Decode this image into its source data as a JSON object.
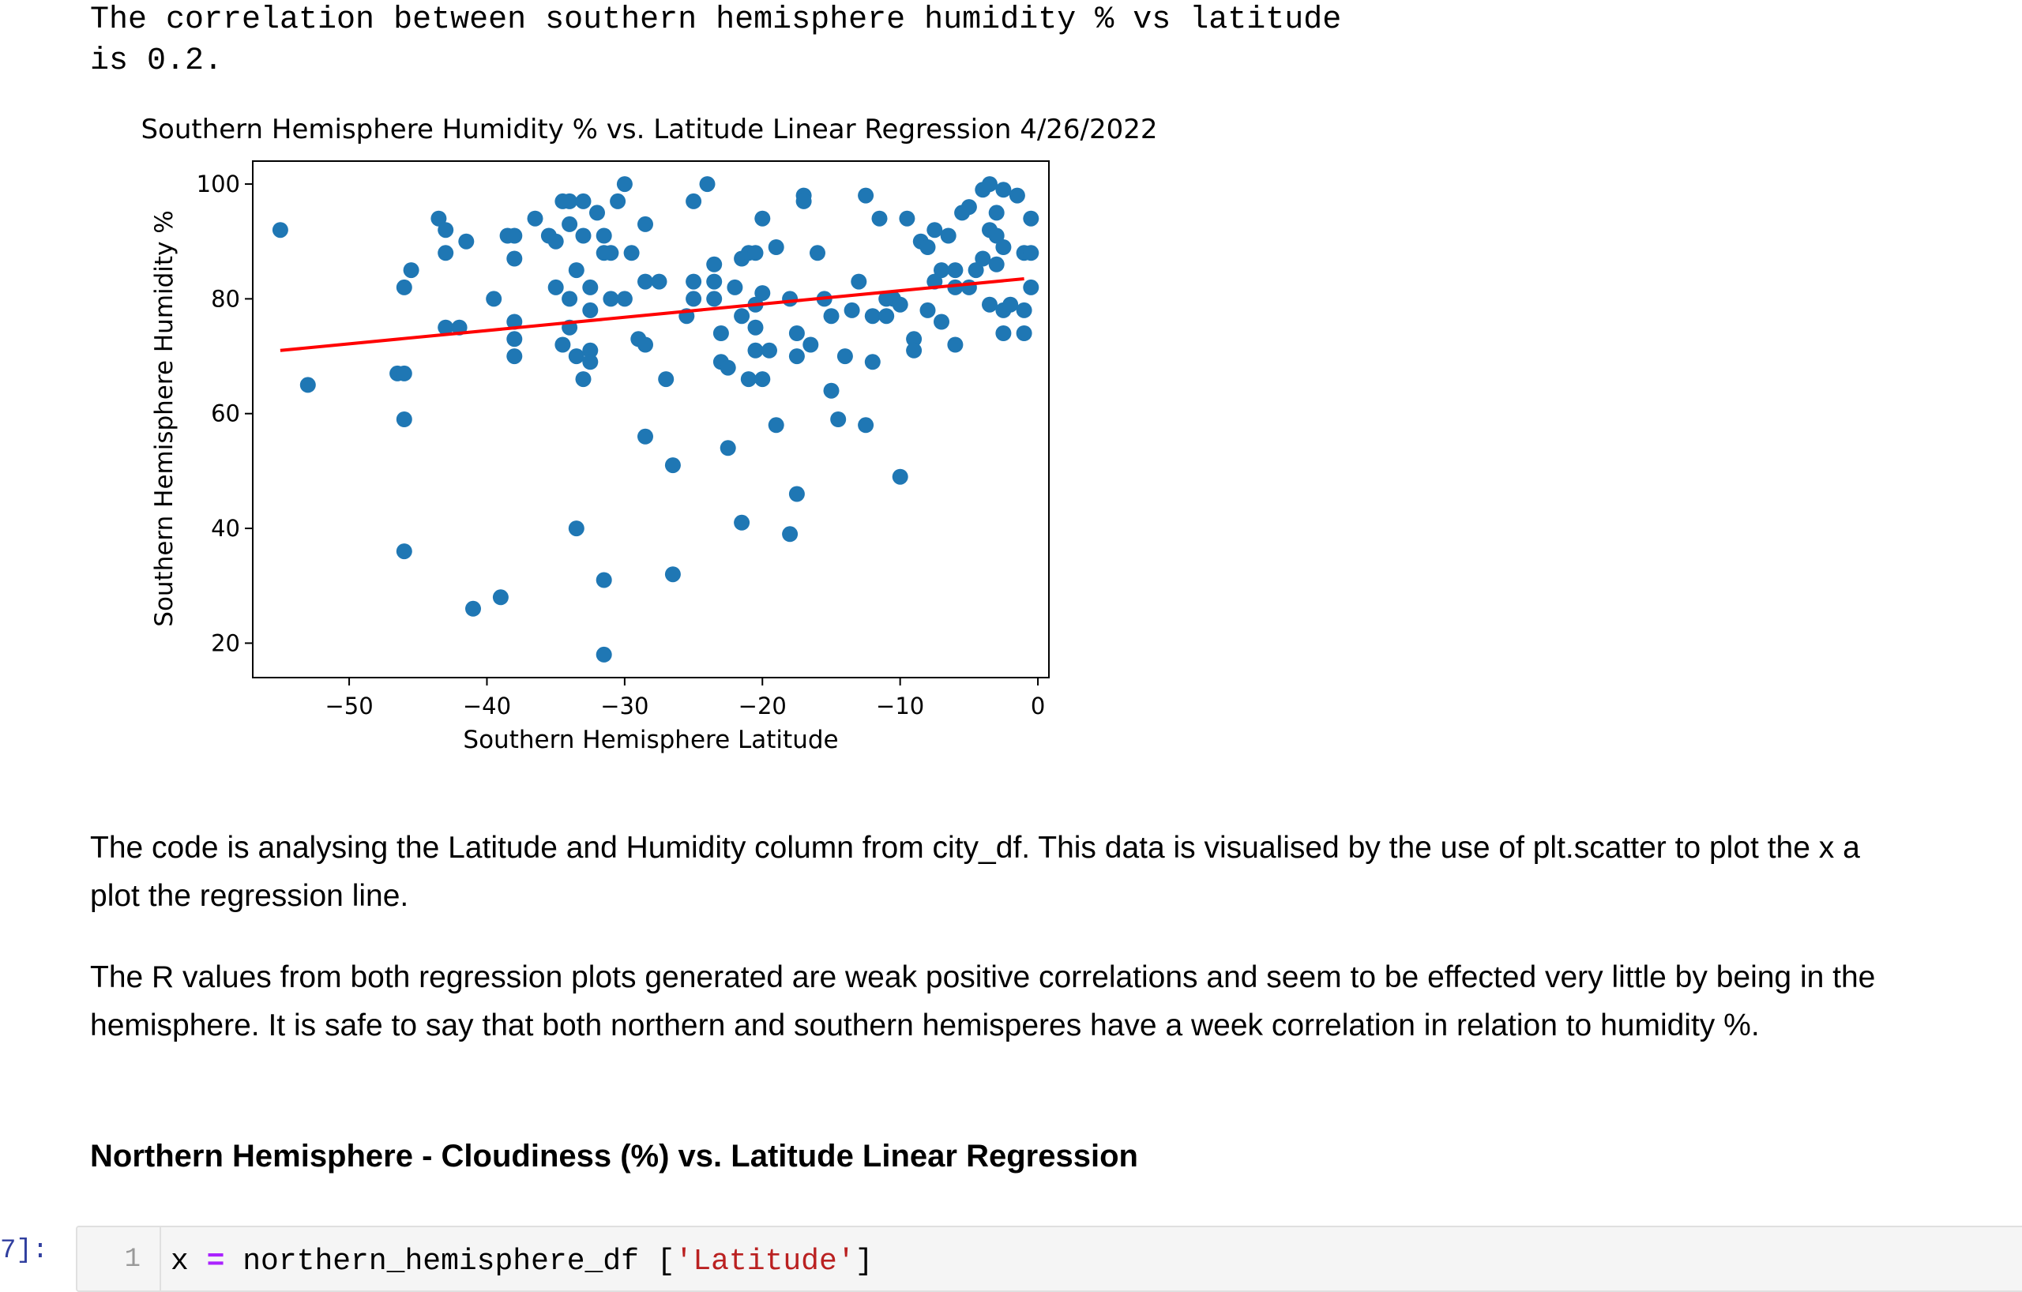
{
  "output": {
    "correlation_text": "The correlation between southern hemisphere humidity % vs latitude\nis 0.2."
  },
  "chart_data": {
    "type": "scatter",
    "title": "Southern Hemisphere Humidity % vs. Latitude Linear Regression 4/26/2022",
    "xlabel": "Southern Hemisphere Latitude",
    "ylabel": "Southern Hemisphere Humidity %",
    "xlim": [
      -57,
      0.8
    ],
    "ylim": [
      14,
      104
    ],
    "xticks": [
      -50,
      -40,
      -30,
      -20,
      -10,
      0
    ],
    "yticks": [
      20,
      40,
      60,
      80,
      100
    ],
    "point_color": "#1f77b4",
    "line_color": "#ff0000",
    "grid": false,
    "regression_line": {
      "x": [
        -55,
        -1
      ],
      "y": [
        71,
        83.5
      ]
    },
    "points": [
      [
        -55,
        92
      ],
      [
        -53,
        65
      ],
      [
        -46.5,
        67
      ],
      [
        -46,
        67
      ],
      [
        -46,
        82
      ],
      [
        -46,
        59
      ],
      [
        -46,
        36
      ],
      [
        -45.5,
        85
      ],
      [
        -43.5,
        94
      ],
      [
        -43,
        92
      ],
      [
        -43,
        88
      ],
      [
        -43,
        75
      ],
      [
        -42,
        75
      ],
      [
        -41.5,
        90
      ],
      [
        -41,
        26
      ],
      [
        -39.5,
        80
      ],
      [
        -39,
        28
      ],
      [
        -38.5,
        91
      ],
      [
        -38,
        91
      ],
      [
        -38,
        87
      ],
      [
        -38,
        76
      ],
      [
        -38,
        73
      ],
      [
        -38,
        70
      ],
      [
        -36.5,
        94
      ],
      [
        -35.5,
        91
      ],
      [
        -35,
        82
      ],
      [
        -35,
        90
      ],
      [
        -34.5,
        97
      ],
      [
        -34.5,
        72
      ],
      [
        -34,
        97
      ],
      [
        -34,
        93
      ],
      [
        -34,
        80
      ],
      [
        -34,
        75
      ],
      [
        -33.5,
        85
      ],
      [
        -33.5,
        70
      ],
      [
        -33.5,
        40
      ],
      [
        -33,
        97
      ],
      [
        -33,
        91
      ],
      [
        -33,
        66
      ],
      [
        -32.5,
        82
      ],
      [
        -32.5,
        78
      ],
      [
        -32.5,
        71
      ],
      [
        -32.5,
        69
      ],
      [
        -32,
        95
      ],
      [
        -31.5,
        91
      ],
      [
        -31.5,
        88
      ],
      [
        -31,
        88
      ],
      [
        -31,
        80
      ],
      [
        -31.5,
        31
      ],
      [
        -31.5,
        18
      ],
      [
        -30.5,
        97
      ],
      [
        -30,
        100
      ],
      [
        -30,
        80
      ],
      [
        -29.5,
        88
      ],
      [
        -29,
        73
      ],
      [
        -28.5,
        93
      ],
      [
        -28.5,
        83
      ],
      [
        -28.5,
        72
      ],
      [
        -28.5,
        56
      ],
      [
        -27.5,
        83
      ],
      [
        -27,
        66
      ],
      [
        -26.5,
        51
      ],
      [
        -26.5,
        32
      ],
      [
        -25.5,
        77
      ],
      [
        -25,
        97
      ],
      [
        -25,
        83
      ],
      [
        -25,
        80
      ],
      [
        -24,
        100
      ],
      [
        -23.5,
        86
      ],
      [
        -23.5,
        83
      ],
      [
        -23.5,
        80
      ],
      [
        -23,
        74
      ],
      [
        -23,
        69
      ],
      [
        -22.5,
        54
      ],
      [
        -22.5,
        68
      ],
      [
        -22,
        82
      ],
      [
        -21.5,
        87
      ],
      [
        -21.5,
        77
      ],
      [
        -21,
        88
      ],
      [
        -21.5,
        41
      ],
      [
        -21,
        66
      ],
      [
        -20.5,
        88
      ],
      [
        -20.5,
        79
      ],
      [
        -20.5,
        75
      ],
      [
        -20.5,
        71
      ],
      [
        -20,
        94
      ],
      [
        -20,
        81
      ],
      [
        -20,
        66
      ],
      [
        -19.5,
        71
      ],
      [
        -19,
        89
      ],
      [
        -19,
        58
      ],
      [
        -18,
        39
      ],
      [
        -18,
        80
      ],
      [
        -17.5,
        74
      ],
      [
        -17.5,
        70
      ],
      [
        -17.5,
        46
      ],
      [
        -17,
        98
      ],
      [
        -17,
        97
      ],
      [
        -16.5,
        72
      ],
      [
        -16,
        88
      ],
      [
        -15.5,
        80
      ],
      [
        -15,
        77
      ],
      [
        -15,
        64
      ],
      [
        -14.5,
        59
      ],
      [
        -14,
        70
      ],
      [
        -13.5,
        78
      ],
      [
        -13,
        83
      ],
      [
        -12.5,
        98
      ],
      [
        -12.5,
        58
      ],
      [
        -12,
        77
      ],
      [
        -12,
        69
      ],
      [
        -11.5,
        94
      ],
      [
        -11,
        80
      ],
      [
        -11,
        77
      ],
      [
        -10.5,
        80
      ],
      [
        -10,
        79
      ],
      [
        -10,
        49
      ],
      [
        -9.5,
        94
      ],
      [
        -9,
        73
      ],
      [
        -9,
        71
      ],
      [
        -8.5,
        90
      ],
      [
        -8,
        89
      ],
      [
        -8,
        78
      ],
      [
        -7.5,
        92
      ],
      [
        -7.5,
        83
      ],
      [
        -7,
        85
      ],
      [
        -7,
        76
      ],
      [
        -6.5,
        91
      ],
      [
        -6,
        85
      ],
      [
        -6,
        82
      ],
      [
        -6,
        72
      ],
      [
        -5.5,
        95
      ],
      [
        -5,
        96
      ],
      [
        -5,
        82
      ],
      [
        -4.5,
        85
      ],
      [
        -4,
        99
      ],
      [
        -4,
        87
      ],
      [
        -3.5,
        100
      ],
      [
        -3.5,
        92
      ],
      [
        -3.5,
        79
      ],
      [
        -3,
        95
      ],
      [
        -3,
        91
      ],
      [
        -3,
        86
      ],
      [
        -2.5,
        99
      ],
      [
        -2.5,
        89
      ],
      [
        -2.5,
        78
      ],
      [
        -2.5,
        74
      ],
      [
        -2,
        79
      ],
      [
        -1.5,
        98
      ],
      [
        -1,
        88
      ],
      [
        -1,
        78
      ],
      [
        -1,
        74
      ],
      [
        -0.5,
        94
      ],
      [
        -0.5,
        88
      ],
      [
        -0.5,
        82
      ]
    ]
  },
  "markdown": {
    "para1_line1": "The code is analysing the Latitude and Humidity column from city_df. This data is visualised by the use of plt.scatter to plot the x a",
    "para1_line2": "plot the regression line.",
    "para2_line1": "The R values from both regression plots generated are weak positive correlations and seem to be effected very little by being in the",
    "para2_line2": "hemisphere. It is safe to say that both northern and southern hemisperes have a week correlation in relation to humidity %.",
    "heading": "Northern Hemisphere - Cloudiness (%) vs. Latitude Linear Regression"
  },
  "code_cell": {
    "prompt": "7]:",
    "line_number": "1",
    "var": "x ",
    "op": "=",
    "expr": " northern_hemisphere_df [",
    "str": "'Latitude'",
    "close": "]"
  }
}
